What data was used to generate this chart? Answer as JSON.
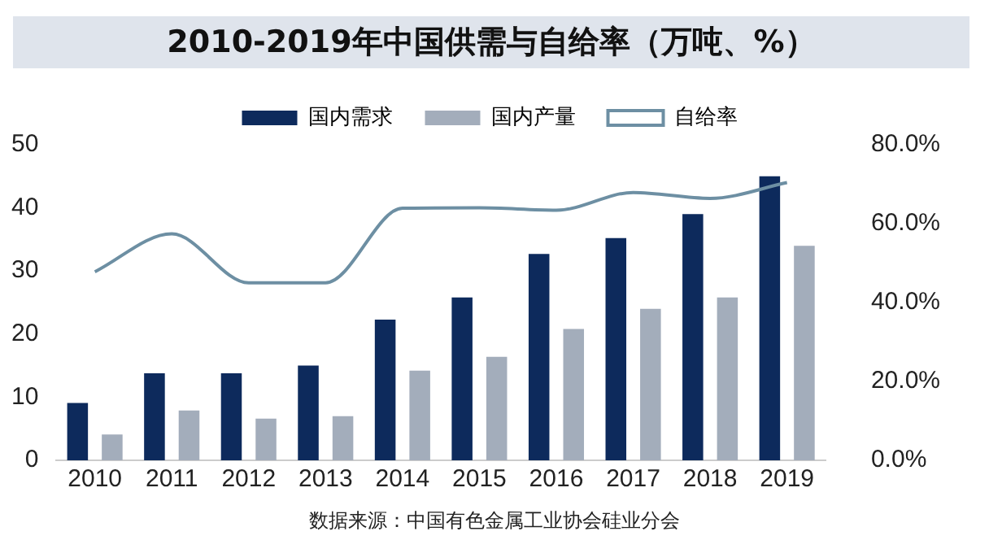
{
  "chart_data": {
    "type": "bar",
    "title": "2010-2019年中国供需与自给率（万吨、%）",
    "categories": [
      "2010",
      "2011",
      "2012",
      "2013",
      "2014",
      "2015",
      "2016",
      "2017",
      "2018",
      "2019"
    ],
    "series": [
      {
        "name": "国内需求",
        "color": "#0d2a5c",
        "values": [
          9.1,
          13.8,
          13.8,
          15,
          22.3,
          25.8,
          32.7,
          35.2,
          39,
          45
        ]
      },
      {
        "name": "国内产量",
        "color": "#a3adbb",
        "values": [
          4.1,
          7.9,
          6.6,
          7,
          14.2,
          16.4,
          20.8,
          24,
          25.8,
          34
        ]
      },
      {
        "name": "自给率",
        "type": "line",
        "axis": "y2",
        "color": "#6d8fa3",
        "values": [
          47.8,
          57.4,
          45,
          45,
          63.9,
          64,
          63.4,
          67.9,
          66.4,
          70.4
        ]
      }
    ],
    "ylim": [
      0,
      50
    ],
    "yticks": [
      0,
      10,
      20,
      30,
      40,
      50
    ],
    "y2lim": [
      0,
      80
    ],
    "y2ticks": [
      {
        "value": 0,
        "label": "0.0%"
      },
      {
        "value": 20,
        "label": "20.0%"
      },
      {
        "value": 40,
        "label": "40.0%"
      },
      {
        "value": 60,
        "label": "60.0%"
      },
      {
        "value": 80,
        "label": "80.0%"
      }
    ],
    "grid": false,
    "legend": "top",
    "marker": "none",
    "annotations": [
      "数据来源：中国有色金属工业协会硅业分会"
    ]
  }
}
